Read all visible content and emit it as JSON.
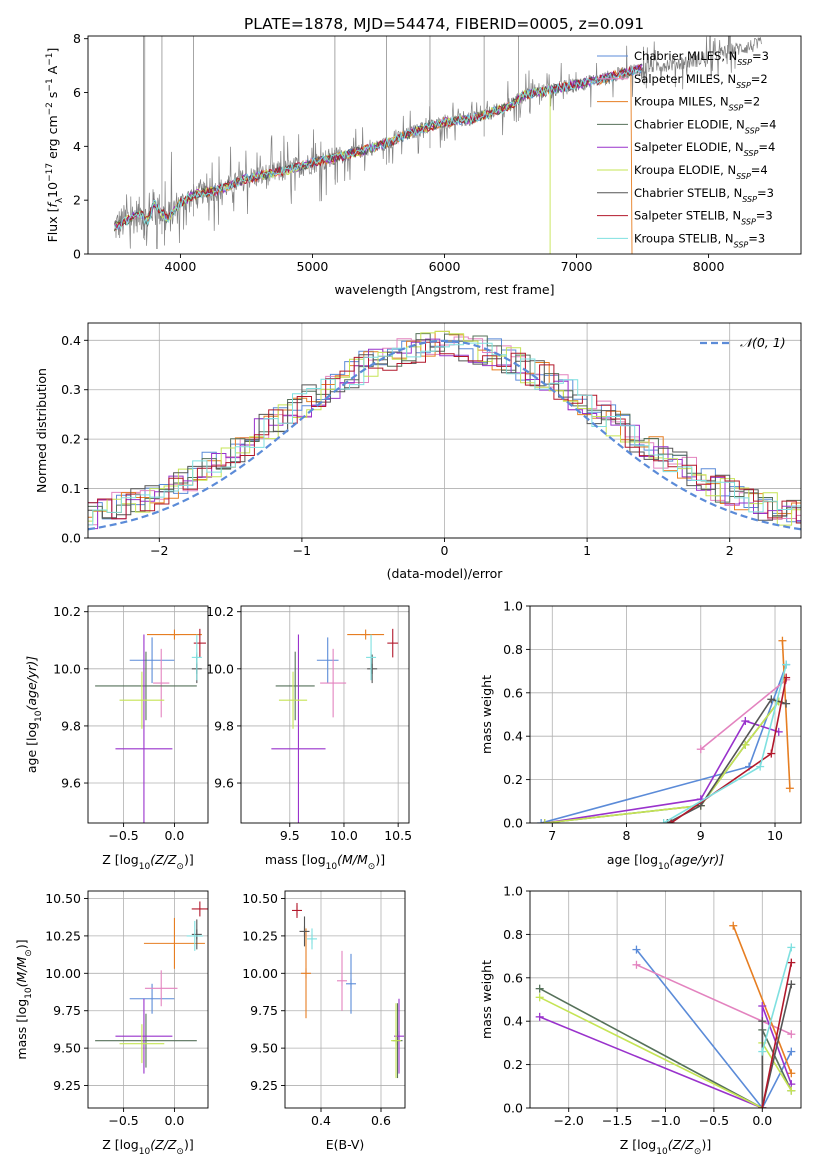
{
  "title": "PLATE=1878, MJD=54474, FIBERID=0005, z=0.091",
  "colors": {
    "Chabrier MILES": "#5b8bd8",
    "Salpeter MILES": "#e383bf",
    "Kroupa MILES": "#e67e22",
    "Chabrier ELODIE": "#56715a",
    "Salpeter ELODIE": "#9932cc",
    "Kroupa ELODIE": "#c5e455",
    "Chabrier STELIB": "#555555",
    "Salpeter STELIB": "#b2182b",
    "Kroupa STELIB": "#7fe0e0",
    "data": "#808080"
  },
  "legend_spectrum": [
    {
      "pre": "Chabrier MILES, N",
      "n": "3",
      "key": "Chabrier MILES"
    },
    {
      "pre": "Salpeter MILES, N",
      "n": "2",
      "key": "Salpeter MILES"
    },
    {
      "pre": "Kroupa MILES, N",
      "n": "2",
      "key": "Kroupa MILES"
    },
    {
      "pre": "Chabrier ELODIE, N",
      "n": "4",
      "key": "Chabrier ELODIE"
    },
    {
      "pre": "Salpeter ELODIE, N",
      "n": "4",
      "key": "Salpeter ELODIE"
    },
    {
      "pre": "Kroupa ELODIE, N",
      "n": "4",
      "key": "Kroupa ELODIE"
    },
    {
      "pre": "Chabrier STELIB, N",
      "n": "3",
      "key": "Chabrier STELIB"
    },
    {
      "pre": "Salpeter STELIB, N",
      "n": "3",
      "key": "Salpeter STELIB"
    },
    {
      "pre": "Kroupa STELIB, N",
      "n": "3",
      "key": "Kroupa STELIB"
    }
  ],
  "legend_subscript": "SSP",
  "legend_normal": "𝒩(0, 1)",
  "chart_data": [
    {
      "id": "spectrum",
      "type": "line",
      "xlabel": "wavelength [Angstrom, rest frame]",
      "ylabel_parts": [
        "Flux [",
        "f",
        "λ",
        "10",
        "−17",
        " erg cm",
        "−2",
        " s",
        "−1",
        " A",
        "−1",
        "]"
      ],
      "xlim": [
        3300,
        8700
      ],
      "ylim": [
        0,
        8.1
      ],
      "xticks": [
        4000,
        5000,
        6000,
        7000,
        8000
      ],
      "yticks": [
        0,
        2,
        4,
        6,
        8
      ],
      "continuum_x": [
        3500,
        3650,
        3700,
        3750,
        3800,
        3900,
        4000,
        4100,
        4300,
        4500,
        4800,
        5000,
        5200,
        5500,
        5800,
        6000,
        6200,
        6500,
        6600,
        6800,
        7000,
        7200,
        7400,
        7600,
        7800,
        8000,
        8200,
        8400
      ],
      "continuum_y": [
        1.0,
        1.4,
        1.5,
        1.2,
        1.9,
        1.3,
        1.9,
        2.2,
        2.4,
        2.8,
        3.1,
        3.4,
        3.6,
        4.0,
        4.6,
        4.9,
        5.0,
        5.5,
        5.9,
        6.1,
        6.3,
        6.5,
        6.8,
        7.0,
        7.1,
        7.3,
        7.6,
        7.8
      ]
    },
    {
      "id": "residuals",
      "type": "step",
      "xlabel": "(data-model)/error",
      "ylabel": "Normed distribution",
      "xlim": [
        -2.5,
        2.5
      ],
      "ylim": [
        0,
        0.435
      ],
      "xticks": [
        -2,
        -1,
        0,
        1,
        2
      ],
      "yticks": [
        0.0,
        0.1,
        0.2,
        0.3,
        0.4
      ],
      "xtick_labels": [
        "−2",
        "−1",
        "0",
        "1",
        "2"
      ],
      "ytick_labels": [
        "0.0",
        "0.1",
        "0.2",
        "0.3",
        "0.4"
      ]
    },
    {
      "id": "age_vs_Z",
      "type": "errorbar",
      "xlabel_parts": [
        "Z [log",
        "10",
        "(Z/Z",
        "⊙",
        ")]"
      ],
      "ylabel_parts": [
        "age  [log",
        "10",
        "(age/yr)]"
      ],
      "xlim": [
        -0.85,
        0.33
      ],
      "ylim": [
        9.46,
        10.22
      ],
      "xticks": [
        -0.5,
        0.0
      ],
      "xtick_labels": [
        "−0.5",
        "0.0"
      ],
      "yticks": [
        9.6,
        9.8,
        10.0,
        10.2
      ],
      "ytick_labels": [
        "9.6",
        "9.8",
        "10.0",
        "10.2"
      ],
      "points": [
        {
          "m": "Chabrier MILES",
          "x": -0.22,
          "xerr": 0.22,
          "y": 10.03,
          "yerr": 0.08
        },
        {
          "m": "Salpeter MILES",
          "x": -0.13,
          "xerr": 0.08,
          "y": 9.95,
          "yerr": 0.12
        },
        {
          "m": "Kroupa MILES",
          "x": 0.0,
          "xerr": 0.27,
          "y": 10.12,
          "yerr": 0.0
        },
        {
          "m": "Chabrier ELODIE",
          "x": -0.28,
          "xerr": 0.5,
          "y": 9.94,
          "yerr": 0.12
        },
        {
          "m": "Salpeter ELODIE",
          "x": -0.3,
          "xerr": 0.28,
          "y": 9.72,
          "yerr": 0.4
        },
        {
          "m": "Kroupa ELODIE",
          "x": -0.32,
          "xerr": 0.22,
          "y": 9.89,
          "yerr": 0.1
        },
        {
          "m": "Chabrier STELIB",
          "x": 0.22,
          "xerr": 0.0,
          "y": 10.0,
          "yerr": 0.05
        },
        {
          "m": "Salpeter STELIB",
          "x": 0.25,
          "xerr": 0.06,
          "y": 10.09,
          "yerr": 0.05
        },
        {
          "m": "Kroupa STELIB",
          "x": 0.22,
          "xerr": 0.0,
          "y": 10.04,
          "yerr": 0.08
        }
      ]
    },
    {
      "id": "age_vs_mass",
      "type": "errorbar",
      "xlabel_parts": [
        "mass [log",
        "10",
        "(M/M",
        "⊙",
        ")]"
      ],
      "xlim": [
        9.05,
        10.6
      ],
      "ylim": [
        9.46,
        10.22
      ],
      "xticks": [
        9.5,
        10.0,
        10.5
      ],
      "xtick_labels": [
        "9.5",
        "10.0",
        "10.5"
      ],
      "yticks": [
        9.6,
        9.8,
        10.0,
        10.2
      ],
      "ytick_labels": [
        "9.6",
        "9.8",
        "10.0",
        "10.2"
      ],
      "points": [
        {
          "m": "Chabrier MILES",
          "x": 9.85,
          "xerr": 0.1,
          "y": 10.03,
          "yerr": 0.08
        },
        {
          "m": "Salpeter MILES",
          "x": 9.9,
          "xerr": 0.12,
          "y": 9.95,
          "yerr": 0.12
        },
        {
          "m": "Kroupa MILES",
          "x": 10.2,
          "xerr": 0.17,
          "y": 10.12,
          "yerr": 0.0
        },
        {
          "m": "Chabrier ELODIE",
          "x": 9.55,
          "xerr": 0.18,
          "y": 9.94,
          "yerr": 0.12
        },
        {
          "m": "Salpeter ELODIE",
          "x": 9.58,
          "xerr": 0.25,
          "y": 9.72,
          "yerr": 0.4
        },
        {
          "m": "Kroupa ELODIE",
          "x": 9.53,
          "xerr": 0.13,
          "y": 9.89,
          "yerr": 0.1
        },
        {
          "m": "Chabrier STELIB",
          "x": 10.26,
          "xerr": 0.0,
          "y": 10.0,
          "yerr": 0.05
        },
        {
          "m": "Salpeter STELIB",
          "x": 10.45,
          "xerr": 0.05,
          "y": 10.09,
          "yerr": 0.05
        },
        {
          "m": "Kroupa STELIB",
          "x": 10.25,
          "xerr": 0.0,
          "y": 10.04,
          "yerr": 0.08
        }
      ]
    },
    {
      "id": "mass_weight_vs_age",
      "type": "line",
      "xlabel_parts": [
        "age  [log",
        "10",
        "(age/yr)]"
      ],
      "ylabel": "mass weight",
      "xlim": [
        6.7,
        10.35
      ],
      "ylim": [
        0,
        1.0
      ],
      "xticks": [
        7,
        8,
        9,
        10
      ],
      "xtick_labels": [
        "7",
        "8",
        "9",
        "10"
      ],
      "yticks": [
        0.0,
        0.2,
        0.4,
        0.6,
        0.8,
        1.0
      ],
      "ytick_labels": [
        "0.0",
        "0.2",
        "0.4",
        "0.6",
        "0.8",
        "1.0"
      ],
      "series": [
        {
          "m": "Chabrier MILES",
          "x": [
            6.85,
            9.65,
            10.15
          ],
          "y": [
            0.0,
            0.26,
            0.73
          ]
        },
        {
          "m": "Salpeter MILES",
          "x": [
            9.0,
            10.15
          ],
          "y": [
            0.34,
            0.66
          ]
        },
        {
          "m": "Kroupa MILES",
          "x": [
            10.1,
            10.2
          ],
          "y": [
            0.84,
            0.16
          ]
        },
        {
          "m": "Chabrier ELODIE",
          "x": [
            6.9,
            9.0,
            9.6,
            10.05
          ],
          "y": [
            0.0,
            0.08,
            0.36,
            0.56
          ]
        },
        {
          "m": "Salpeter ELODIE",
          "x": [
            6.9,
            9.0,
            9.6,
            10.05
          ],
          "y": [
            0.0,
            0.11,
            0.47,
            0.42
          ]
        },
        {
          "m": "Kroupa ELODIE",
          "x": [
            6.9,
            9.0,
            9.6,
            10.05
          ],
          "y": [
            0.0,
            0.08,
            0.36,
            0.56
          ]
        },
        {
          "m": "Chabrier STELIB",
          "x": [
            8.55,
            9.0,
            9.95,
            10.15
          ],
          "y": [
            0.0,
            0.08,
            0.57,
            0.55
          ]
        },
        {
          "m": "Salpeter STELIB",
          "x": [
            8.6,
            9.95,
            10.15
          ],
          "y": [
            0.0,
            0.32,
            0.67
          ]
        },
        {
          "m": "Kroupa STELIB",
          "x": [
            8.5,
            9.8,
            10.15
          ],
          "y": [
            0.0,
            0.26,
            0.73
          ]
        }
      ]
    },
    {
      "id": "mass_vs_Z",
      "type": "errorbar",
      "xlabel_parts": [
        "Z [log",
        "10",
        "(Z/Z",
        "⊙",
        ")]"
      ],
      "ylabel_parts": [
        "mass [log",
        "10",
        "(M/M",
        "⊙",
        ")]"
      ],
      "xlim": [
        -0.85,
        0.33
      ],
      "ylim": [
        9.1,
        10.55
      ],
      "xticks": [
        -0.5,
        0.0
      ],
      "xtick_labels": [
        "−0.5",
        "0.0"
      ],
      "yticks": [
        9.25,
        9.5,
        9.75,
        10.0,
        10.25,
        10.5
      ],
      "ytick_labels": [
        "9.25",
        "9.50",
        "9.75",
        "10.00",
        "10.25",
        "10.50"
      ],
      "points": [
        {
          "m": "Chabrier MILES",
          "x": -0.22,
          "xerr": 0.22,
          "y": 9.83,
          "yerr": 0.1
        },
        {
          "m": "Salpeter MILES",
          "x": -0.13,
          "xerr": 0.16,
          "y": 9.9,
          "yerr": 0.12
        },
        {
          "m": "Kroupa MILES",
          "x": 0.0,
          "xerr": 0.3,
          "y": 10.2,
          "yerr": 0.17
        },
        {
          "m": "Chabrier ELODIE",
          "x": -0.28,
          "xerr": 0.5,
          "y": 9.55,
          "yerr": 0.18
        },
        {
          "m": "Salpeter ELODIE",
          "x": -0.3,
          "xerr": 0.28,
          "y": 9.58,
          "yerr": 0.25
        },
        {
          "m": "Kroupa ELODIE",
          "x": -0.32,
          "xerr": 0.22,
          "y": 9.53,
          "yerr": 0.13
        },
        {
          "m": "Chabrier STELIB",
          "x": 0.22,
          "xerr": 0.0,
          "y": 10.26,
          "yerr": 0.1
        },
        {
          "m": "Salpeter STELIB",
          "x": 0.25,
          "xerr": 0.08,
          "y": 10.43,
          "yerr": 0.05
        },
        {
          "m": "Kroupa STELIB",
          "x": 0.2,
          "xerr": 0.08,
          "y": 10.25,
          "yerr": 0.1
        }
      ]
    },
    {
      "id": "mass_vs_ebv",
      "type": "errorbar",
      "xlabel": "E(B-V)",
      "xlim": [
        0.28,
        0.68
      ],
      "ylim": [
        9.1,
        10.55
      ],
      "xticks": [
        0.4,
        0.6
      ],
      "xtick_labels": [
        "0.4",
        "0.6"
      ],
      "yticks": [
        9.25,
        9.5,
        9.75,
        10.0,
        10.25,
        10.5
      ],
      "ytick_labels": [
        "9.25",
        "9.50",
        "9.75",
        "10.00",
        "10.25",
        "10.50"
      ],
      "points": [
        {
          "m": "Chabrier MILES",
          "x": 0.5,
          "xerr": 0.0,
          "y": 9.93,
          "yerr": 0.2
        },
        {
          "m": "Salpeter MILES",
          "x": 0.47,
          "xerr": 0.0,
          "y": 9.95,
          "yerr": 0.2
        },
        {
          "m": "Kroupa MILES",
          "x": 0.35,
          "xerr": 0.0,
          "y": 10.0,
          "yerr": 0.3
        },
        {
          "m": "Chabrier ELODIE",
          "x": 0.655,
          "xerr": 0.0,
          "y": 9.55,
          "yerr": 0.25
        },
        {
          "m": "Salpeter ELODIE",
          "x": 0.66,
          "xerr": 0.0,
          "y": 9.58,
          "yerr": 0.25
        },
        {
          "m": "Kroupa ELODIE",
          "x": 0.65,
          "xerr": 0.0,
          "y": 9.55,
          "yerr": 0.25
        },
        {
          "m": "Chabrier STELIB",
          "x": 0.345,
          "xerr": 0.0,
          "y": 10.28,
          "yerr": 0.1
        },
        {
          "m": "Salpeter STELIB",
          "x": 0.32,
          "xerr": 0.0,
          "y": 10.42,
          "yerr": 0.05
        },
        {
          "m": "Kroupa STELIB",
          "x": 0.37,
          "xerr": 0.0,
          "y": 10.23,
          "yerr": 0.07
        }
      ]
    },
    {
      "id": "mass_weight_vs_Z",
      "type": "line",
      "xlabel_parts": [
        "Z [log",
        "10",
        "(Z/Z",
        "⊙",
        ")]"
      ],
      "ylabel": "mass weight",
      "xlim": [
        -2.4,
        0.4
      ],
      "ylim": [
        0,
        1.0
      ],
      "xticks": [
        -2.0,
        -1.5,
        -1.0,
        -0.5,
        0.0
      ],
      "xtick_labels": [
        "−2.0",
        "−1.5",
        "−1.0",
        "−0.5",
        "0.0"
      ],
      "yticks": [
        0.0,
        0.2,
        0.4,
        0.6,
        0.8,
        1.0
      ],
      "ytick_labels": [
        "0.0",
        "0.2",
        "0.4",
        "0.6",
        "0.8",
        "1.0"
      ],
      "series": [
        {
          "m": "Chabrier MILES",
          "x": [
            -1.3,
            0.0,
            0.3
          ],
          "y": [
            0.73,
            0.0,
            0.26
          ]
        },
        {
          "m": "Salpeter MILES",
          "x": [
            -1.3,
            0.3
          ],
          "y": [
            0.66,
            0.34
          ]
        },
        {
          "m": "Kroupa MILES",
          "x": [
            -0.3,
            0.3
          ],
          "y": [
            0.84,
            0.16
          ]
        },
        {
          "m": "Chabrier ELODIE",
          "x": [
            -2.3,
            0.0,
            0.0,
            0.3
          ],
          "y": [
            0.55,
            0.0,
            0.36,
            0.08
          ]
        },
        {
          "m": "Salpeter ELODIE",
          "x": [
            -2.3,
            0.0,
            0.0,
            0.3
          ],
          "y": [
            0.42,
            0.0,
            0.47,
            0.11
          ]
        },
        {
          "m": "Kroupa ELODIE",
          "x": [
            -2.3,
            0.0,
            0.0,
            0.3
          ],
          "y": [
            0.51,
            0.0,
            0.3,
            0.08
          ]
        },
        {
          "m": "Chabrier STELIB",
          "x": [
            0.0,
            0.0,
            0.3
          ],
          "y": [
            0.4,
            0.0,
            0.57
          ]
        },
        {
          "m": "Salpeter STELIB",
          "x": [
            0.0,
            0.3
          ],
          "y": [
            0.0,
            0.67
          ]
        },
        {
          "m": "Kroupa STELIB",
          "x": [
            0.0,
            0.3
          ],
          "y": [
            0.26,
            0.74
          ]
        }
      ]
    }
  ]
}
